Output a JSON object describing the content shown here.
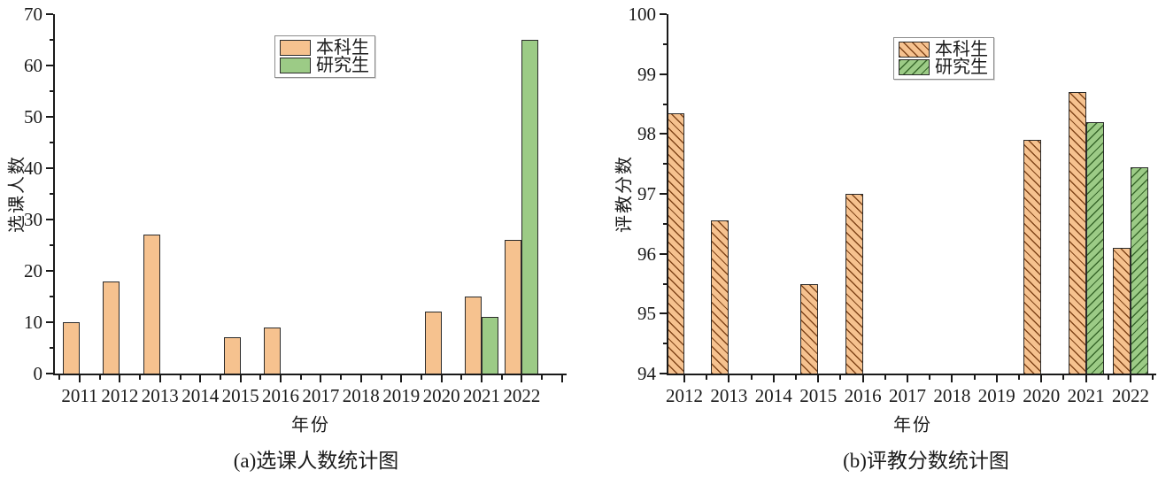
{
  "figure": {
    "background_color": "#ffffff",
    "accent_orange": "#F6C28F",
    "accent_green": "#9CCB86"
  },
  "chart_data": [
    {
      "type": "bar",
      "title": "(a)选课人数统计图",
      "xlabel": "年份",
      "ylabel": "选课人数",
      "categories": [
        "2011",
        "2012",
        "2013",
        "2014",
        "2015",
        "2016",
        "2017",
        "2018",
        "2019",
        "2020",
        "2021",
        "2022"
      ],
      "series": [
        {
          "name": "本科生",
          "fill": "#F6C28F",
          "border": "#2b2b2b",
          "hatch": "none",
          "values": [
            10,
            18,
            27,
            0,
            7,
            9,
            0,
            0,
            0,
            12,
            15,
            26
          ]
        },
        {
          "name": "研究生",
          "fill": "#9CCB86",
          "border": "#2b2b2b",
          "hatch": "none",
          "values": [
            0,
            0,
            0,
            0,
            0,
            0,
            0,
            0,
            0,
            0,
            11,
            65
          ]
        }
      ],
      "ylim": [
        0,
        70
      ],
      "y_major_step": 10,
      "y_minor_step": 5,
      "grid": false,
      "legend_position": "top-center"
    },
    {
      "type": "bar",
      "title": "(b)评教分数统计图",
      "xlabel": "年份",
      "ylabel": "评教分数",
      "categories": [
        "2012",
        "2013",
        "2014",
        "2015",
        "2016",
        "2017",
        "2018",
        "2019",
        "2020",
        "2021",
        "2022"
      ],
      "series": [
        {
          "name": "本科生",
          "fill": "#F6C28F",
          "border": "#2b2b2b",
          "hatch": "\\",
          "hatch_color": "#80451a",
          "values": [
            98.35,
            96.55,
            null,
            95.5,
            97,
            null,
            null,
            null,
            97.9,
            98.7,
            96.1
          ]
        },
        {
          "name": "研究生",
          "fill": "#9CCB86",
          "border": "#2b2b2b",
          "hatch": "/",
          "hatch_color": "#39682c",
          "values": [
            null,
            null,
            null,
            null,
            null,
            null,
            null,
            null,
            null,
            98.2,
            97.45
          ]
        }
      ],
      "ylim": [
        94,
        100
      ],
      "y_major_step": 1,
      "y_minor_step": 0.5,
      "grid": false,
      "legend_position": "top-right"
    }
  ]
}
